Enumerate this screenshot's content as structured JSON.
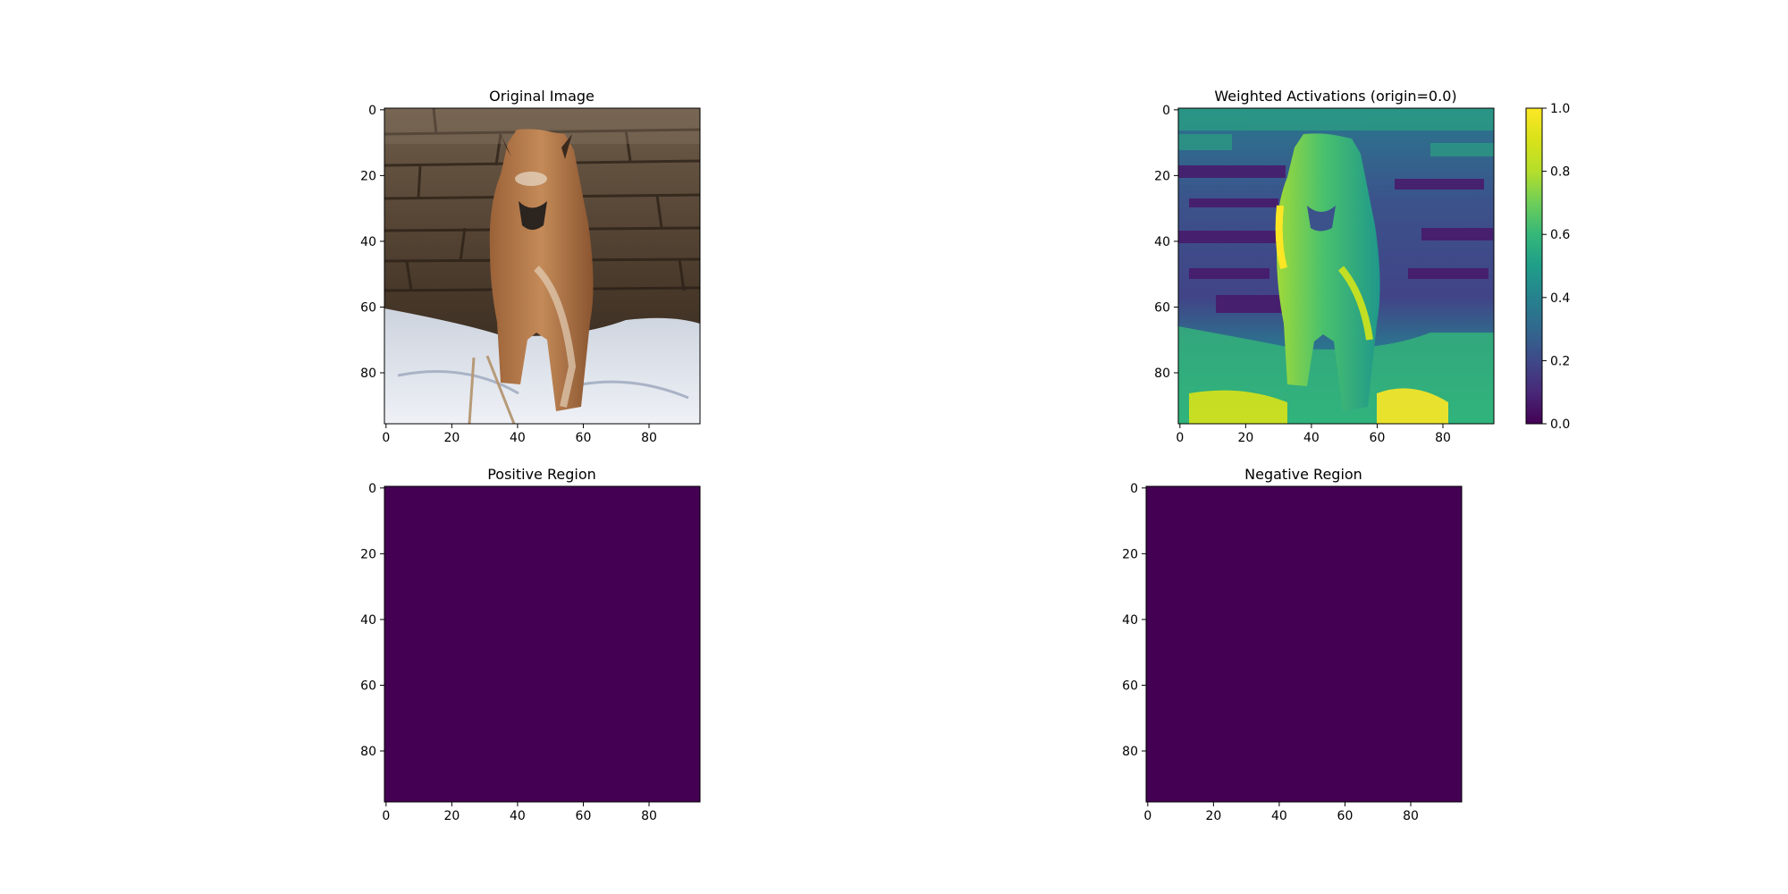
{
  "chart_data": [
    {
      "type": "image",
      "title": "Original Image",
      "xlim": [
        0,
        96
      ],
      "ylim": [
        96,
        0
      ],
      "xticks": [
        0,
        20,
        40,
        60,
        80
      ],
      "yticks": [
        0,
        20,
        40,
        60,
        80
      ],
      "xtick_labels": [
        "0",
        "20",
        "40",
        "60",
        "80"
      ],
      "ytick_labels": [
        "0",
        "20",
        "40",
        "60",
        "80"
      ],
      "content": "photo of a caracal walking on snow in front of a stone wall"
    },
    {
      "type": "heatmap",
      "title": "Weighted Activations (origin=0.0)",
      "colormap": "viridis",
      "xlim": [
        0,
        96
      ],
      "ylim": [
        96,
        0
      ],
      "xticks": [
        0,
        20,
        40,
        60,
        80
      ],
      "yticks": [
        0,
        20,
        40,
        60,
        80
      ],
      "xtick_labels": [
        "0",
        "20",
        "40",
        "60",
        "80"
      ],
      "ytick_labels": [
        "0",
        "20",
        "40",
        "60",
        "80"
      ],
      "colorbar": {
        "vmin": 0.0,
        "vmax": 1.0,
        "ticks": [
          0.0,
          0.2,
          0.4,
          0.6,
          0.8,
          1.0
        ],
        "tick_labels": [
          "0.0",
          "0.2",
          "0.4",
          "0.6",
          "0.8",
          "1.0"
        ]
      }
    },
    {
      "type": "heatmap",
      "title": "Positive Region",
      "colormap": "viridis",
      "uniform_value": 0,
      "fill_color": "#440154",
      "xlim": [
        0,
        96
      ],
      "ylim": [
        96,
        0
      ],
      "xticks": [
        0,
        20,
        40,
        60,
        80
      ],
      "yticks": [
        0,
        20,
        40,
        60,
        80
      ],
      "xtick_labels": [
        "0",
        "20",
        "40",
        "60",
        "80"
      ],
      "ytick_labels": [
        "0",
        "20",
        "40",
        "60",
        "80"
      ]
    },
    {
      "type": "heatmap",
      "title": "Negative Region",
      "colormap": "viridis",
      "uniform_value": 0,
      "fill_color": "#440154",
      "xlim": [
        0,
        96
      ],
      "ylim": [
        96,
        0
      ],
      "xticks": [
        0,
        20,
        40,
        60,
        80
      ],
      "yticks": [
        0,
        20,
        40,
        60,
        80
      ],
      "xtick_labels": [
        "0",
        "20",
        "40",
        "60",
        "80"
      ],
      "ytick_labels": [
        "0",
        "20",
        "40",
        "60",
        "80"
      ]
    }
  ]
}
